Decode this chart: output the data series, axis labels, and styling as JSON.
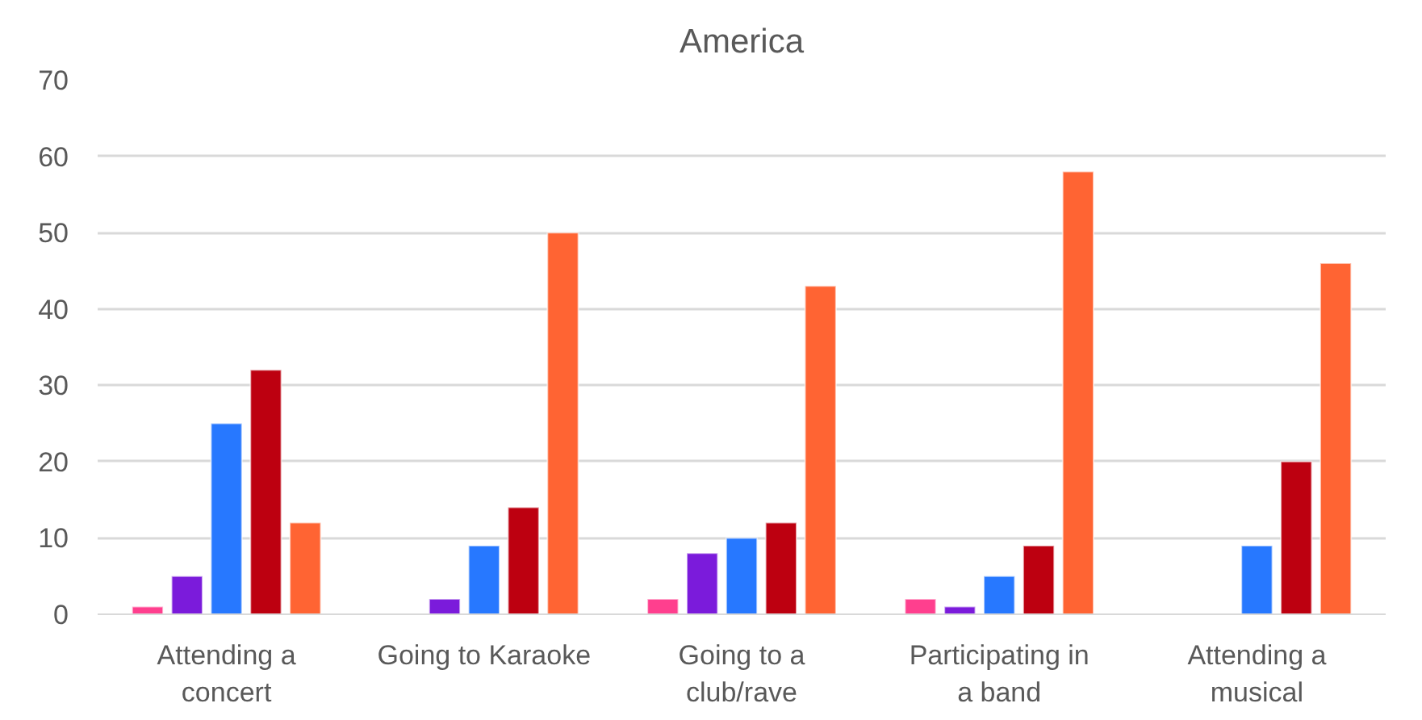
{
  "chart_data": {
    "type": "bar",
    "title": "America",
    "categories": [
      "Attending a concert",
      "Going to Karaoke",
      "Going to a club/rave",
      "Participating in a band",
      "Attending a musical"
    ],
    "series": [
      {
        "color": "#ff3f8e",
        "values": [
          1,
          null,
          2,
          2,
          null
        ]
      },
      {
        "color": "#7b1bdb",
        "values": [
          5,
          2,
          8,
          1,
          null
        ]
      },
      {
        "color": "#2778ff",
        "values": [
          25,
          9,
          10,
          5,
          9
        ]
      },
      {
        "color": "#bd0010",
        "values": [
          32,
          14,
          12,
          9,
          20
        ]
      },
      {
        "color": "#ff6433",
        "values": [
          12,
          50,
          43,
          58,
          46
        ]
      }
    ],
    "ylim": [
      0,
      70
    ],
    "yticks": [
      0,
      10,
      20,
      30,
      40,
      50,
      60,
      70
    ],
    "grid": "y"
  }
}
